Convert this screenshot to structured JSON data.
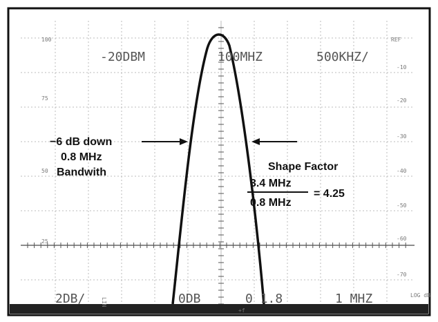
{
  "display": {
    "ref_level": "-20DBM",
    "center_freq": "100MHZ",
    "span": "500KHZ/",
    "ref_marker": "REF",
    "right_scale": [
      "-10",
      "-20",
      "-30",
      "-40",
      "-50",
      "-60",
      "-70"
    ],
    "left_scale": [
      "100",
      "75",
      "50",
      "25"
    ],
    "bottom": {
      "lin": "LIN",
      "scale": "2DB/",
      "level": "0DB",
      "bw": "0 1.8",
      "resolution": "1 MHZ",
      "log": "LOG dB",
      "freq_axis": "+f"
    }
  },
  "annotations": {
    "bandwidth_lines": [
      "−6 dB down",
      "0.8 MHz",
      "Bandwith"
    ],
    "shape_factor": {
      "title": "Shape Factor",
      "numerator": "3.4 MHz",
      "denominator": "0.8 MHz",
      "result": "= 4.25"
    }
  }
}
